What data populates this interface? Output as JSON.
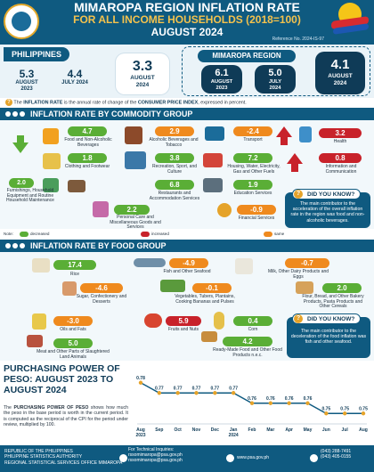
{
  "header": {
    "title": "MIMAROPA REGION INFLATION RATE",
    "subtitle": "FOR ALL INCOME HOUSEHOLDS (2018=100)",
    "month": "AUGUST 2024",
    "reference": "Reference No. 2024-IS-97",
    "bp_logo_text": "BAGONG PILIPINAS"
  },
  "philippines": {
    "label": "PHILIPPINES",
    "cards": [
      {
        "value": "5.3",
        "period": "AUGUST 2023"
      },
      {
        "value": "4.4",
        "period": "JULY 2024"
      },
      {
        "value": "3.3",
        "period": "AUGUST 2024"
      }
    ]
  },
  "mimaropa": {
    "label": "MIMAROPA REGION",
    "cards": [
      {
        "value": "6.1",
        "period": "AUGUST 2023"
      },
      {
        "value": "5.0",
        "period": "JULY 2024"
      },
      {
        "value": "4.1",
        "period": "AUGUST 2024"
      }
    ]
  },
  "note": {
    "pre": "The ",
    "term1": "INFLATION RATE",
    "mid": " is the annual rate of change of the ",
    "term2": "CONSUMER PRICE INDEX",
    "post": ", expressed in percent."
  },
  "commodity": {
    "title": "INFLATION RATE BY COMMODITY GROUP",
    "items": [
      {
        "value": "4.7",
        "label": "Food and Non-Alcoholic Beverages",
        "trend": "down"
      },
      {
        "value": "2.9",
        "label": "Alcoholic Beverages and Tobacco",
        "trend": "same"
      },
      {
        "value": "-2.4",
        "label": "Transport",
        "trend": "same"
      },
      {
        "value": "3.2",
        "label": "Health",
        "trend": "up"
      },
      {
        "value": "1.8",
        "label": "Clothing and Footwear",
        "trend": "down"
      },
      {
        "value": "3.8",
        "label": "Recreation, Sport, and Culture",
        "trend": "same"
      },
      {
        "value": "7.2",
        "label": "Housing, Water, Electricity, Gas and Other Fuels",
        "trend": "down"
      },
      {
        "value": "0.8",
        "label": "Information and Communication",
        "trend": "up"
      },
      {
        "value": "2.0",
        "label": "Furnishings, Household Equipment and Routine Household Maintenance",
        "trend": "down"
      },
      {
        "value": "6.8",
        "label": "Restaurants and Accommodation Services",
        "trend": "down"
      },
      {
        "value": "1.9",
        "label": "Education Services",
        "trend": "down"
      },
      {
        "value": "2.2",
        "label": "Personal Care and Miscellaneous Goods and Services",
        "trend": "down"
      },
      {
        "value": "-0.9",
        "label": "Financial Services",
        "trend": "same"
      }
    ],
    "dyk": {
      "title": "DID YOU KNOW?",
      "text": "The main contributor to the acceleration of the overall inflation rate in the region was food and non-alcoholic beverages."
    }
  },
  "legend": {
    "decreased": "decreased relative to July 2024 inflation",
    "increased": "increased relative to July 2024 inflation",
    "same": "same as/equal to July 2024 inflation",
    "note_label": "Note:"
  },
  "food": {
    "title": "INFLATION RATE BY FOOD GROUP",
    "items": [
      {
        "value": "17.4",
        "label": "Rice",
        "trend": "down"
      },
      {
        "value": "-4.9",
        "label": "Fish and Other Seafood",
        "trend": "same"
      },
      {
        "value": "-0.7",
        "label": "Milk, Other Dairy Products and Eggs",
        "trend": "same"
      },
      {
        "value": "-4.6",
        "label": "Sugar, Confectionery and Desserts",
        "trend": "same"
      },
      {
        "value": "-0.1",
        "label": "Vegetables, Tubers, Plantains, Cooking Bananas and Pulses",
        "trend": "same"
      },
      {
        "value": "2.0",
        "label": "Flour, Bread, and Other Bakery Products, Pasta Products and Other Cereals",
        "trend": "down"
      },
      {
        "value": "-3.0",
        "label": "Oils and Fats",
        "trend": "same"
      },
      {
        "value": "5.9",
        "label": "Fruits and Nuts",
        "trend": "up"
      },
      {
        "value": "0.4",
        "label": "Corn",
        "trend": "down"
      },
      {
        "value": "5.0",
        "label": "Meat and Other Parts of Slaughtered Land Animals",
        "trend": "down"
      },
      {
        "value": "4.2",
        "label": "Ready-Made Food and Other Food Products n.e.c.",
        "trend": "down"
      }
    ],
    "dyk": {
      "title": "DID YOU KNOW?",
      "text": "The main contributor to the deceleration of the food inflation was fish and other seafood."
    }
  },
  "purchasing_power": {
    "title": "PURCHASING POWER OF PESO: AUGUST 2023 TO AUGUST 2024",
    "text_pre": "The ",
    "text_bold": "PURCHASING POWER OF PESO",
    "text_post": " shows how much the peso in the base period is worth in the current period. It is computed as the reciprocal of the CPI for the period under review, multiplied by 100."
  },
  "chart_data": {
    "type": "line",
    "categories": [
      "Aug 2023",
      "Sep",
      "Oct",
      "Nov",
      "Dec",
      "Jan 2024",
      "Feb",
      "Mar",
      "Apr",
      "May",
      "Jun",
      "Jul",
      "Aug"
    ],
    "values": [
      0.78,
      0.77,
      0.77,
      0.77,
      0.77,
      0.77,
      0.76,
      0.76,
      0.76,
      0.76,
      0.75,
      0.75,
      0.75
    ],
    "ylim": [
      0.745,
      0.785
    ],
    "grid": false,
    "line_color": "#0f5a80",
    "marker_color": "#e5a32a"
  },
  "footer": {
    "org1": "REPUBLIC OF THE PHILIPPINES",
    "org2": "PHILIPPINE STATISTICS AUTHORITY",
    "org3": "REGIONAL STATISTICAL SERVICES OFFICE MIMAROPA",
    "contact_label": "For Technical Inquiries:",
    "email1": "rssomimaropa@psa.gov.ph",
    "email2": "rssomimaropa@psa.gov.ph",
    "web": "www.psa.gov.ph",
    "tel1": "(043) 288-7491",
    "tel2": "(043) 405-0155"
  }
}
